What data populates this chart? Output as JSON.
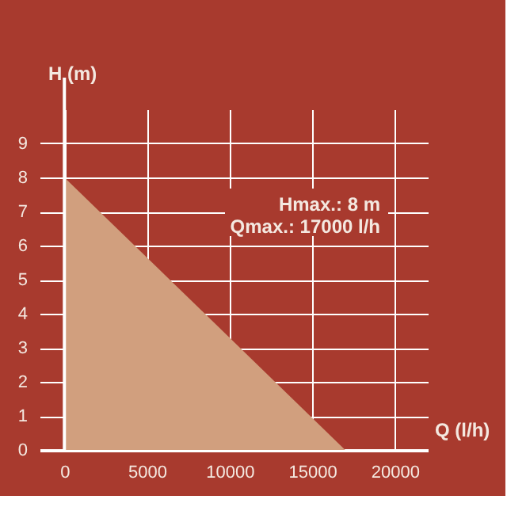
{
  "chart_data": {
    "type": "area",
    "xlabel": "Q (l/h)",
    "ylabel": "H (m)",
    "x": [
      0,
      17000
    ],
    "series": [
      {
        "color": "#d19f7e",
        "values": [
          8,
          0
        ]
      }
    ],
    "xlim": [
      -1500,
      22000
    ],
    "ylim": [
      0,
      10
    ],
    "xticks": [
      0,
      5000,
      10000,
      15000,
      20000
    ],
    "yticks": [
      0,
      1,
      2,
      3,
      4,
      5,
      6,
      7,
      8,
      9
    ],
    "grid": true,
    "annotations": [
      {
        "text": "Hmax.: 8 m"
      },
      {
        "text": "Qmax.: 17000 l/h"
      }
    ]
  }
}
